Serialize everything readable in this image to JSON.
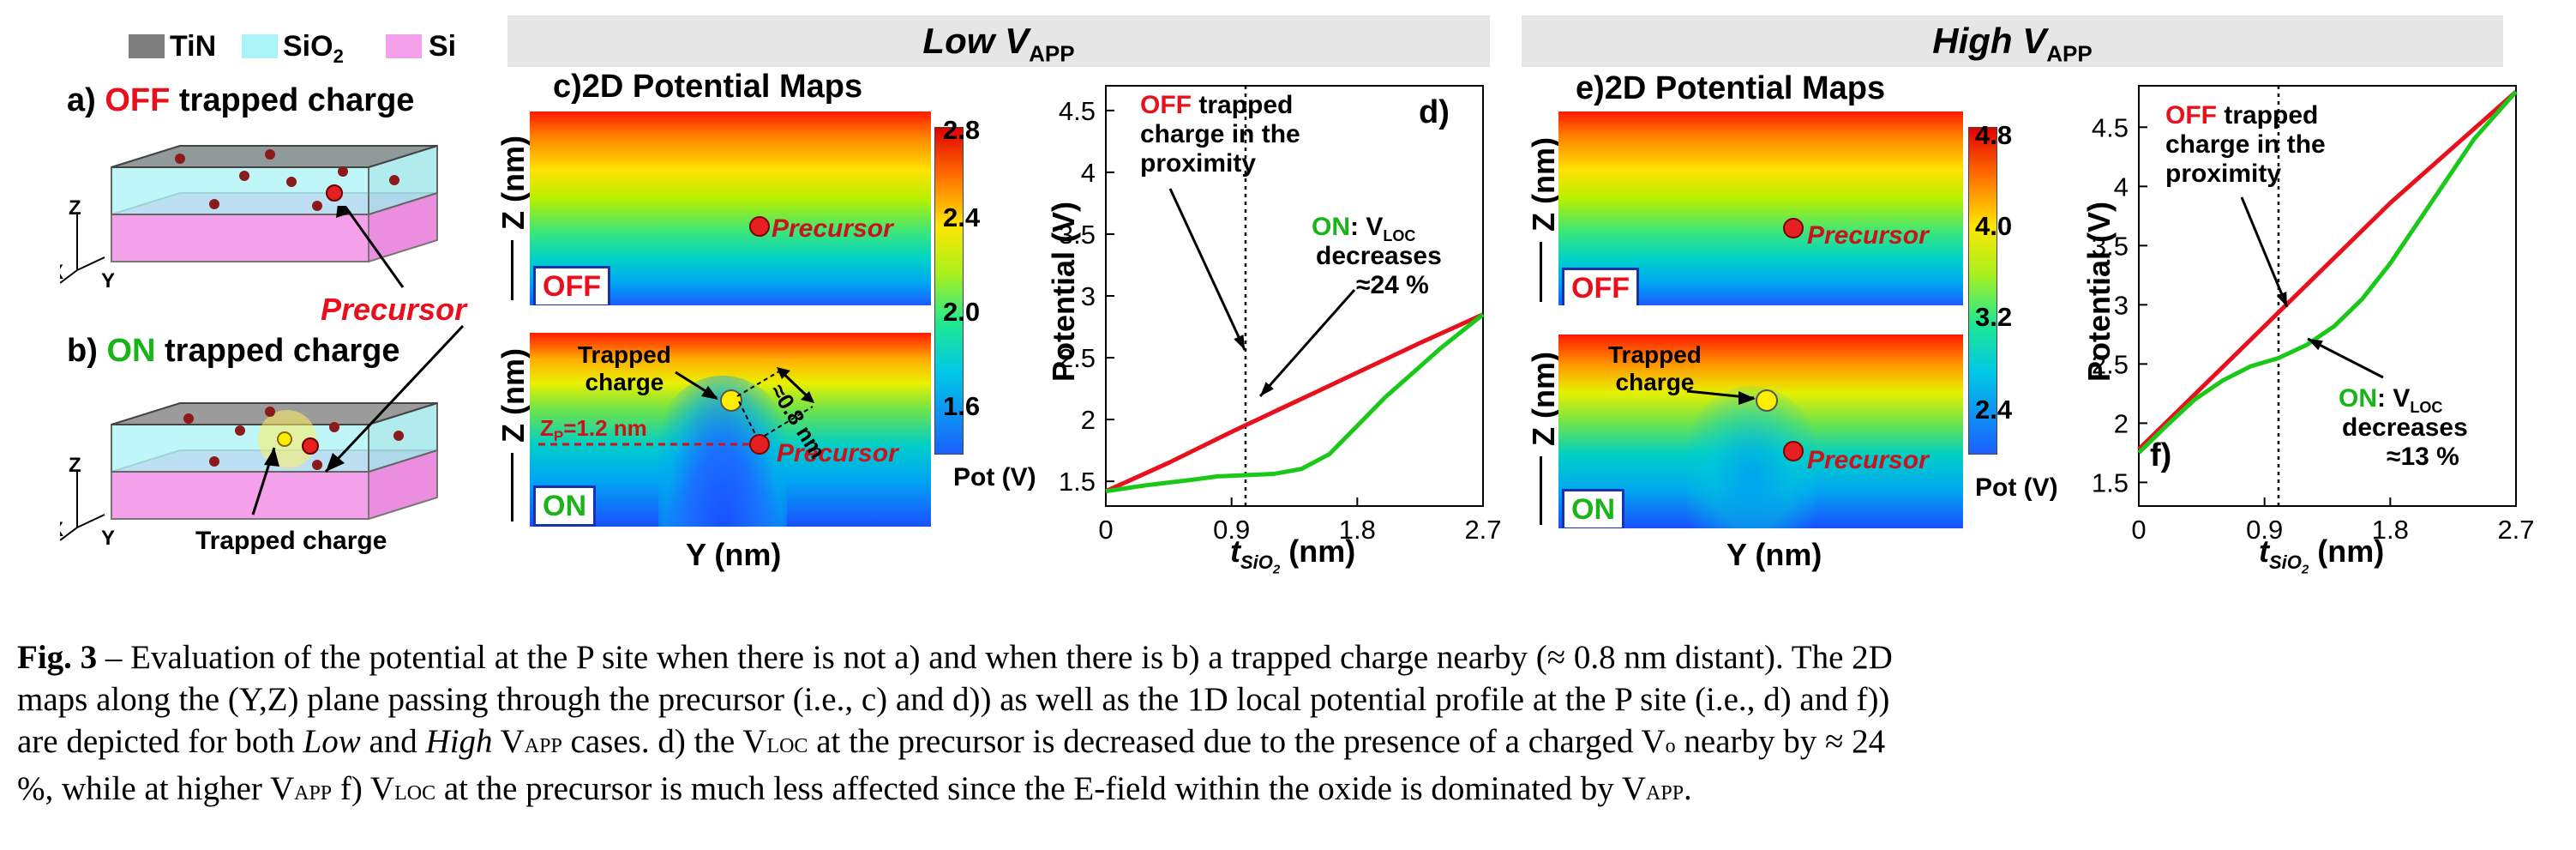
{
  "legend": {
    "tin": "TiN",
    "sio2": "SiO",
    "sio2_sub": "2",
    "si": "Si",
    "tin_color": "#7f7f7f",
    "sio2_color": "#aaf4f7",
    "si_color": "#f5a0ea"
  },
  "panel_a": {
    "letter": "a)",
    "state": "OFF",
    "rest": " trapped charge"
  },
  "panel_b": {
    "letter": "b)",
    "state": "ON",
    "rest": " trapped charge",
    "trapped_label": "Trapped charge"
  },
  "precursor_label": "Precursor",
  "axes_3d": {
    "x": "X",
    "y": "Y",
    "z": "Z"
  },
  "low": {
    "banner": "Low V",
    "banner_sub": "APP",
    "map_title": "c)2D Potential Maps",
    "z_label": "Z (nm)",
    "y_label": "Y (nm)",
    "off_tag": "OFF",
    "on_tag": "ON",
    "precursor": "Precursor",
    "trapped": "Trapped charge",
    "trapped_l1": "Trapped",
    "trapped_l2": "charge",
    "dist": "≈0.8 nm",
    "zp": "Z",
    "zp_sub": "P",
    "zp_val": "=1.2 nm",
    "colorbar": [
      "2.8",
      "2.4",
      "2.0",
      "1.6"
    ],
    "colorbar_label": "Pot (V)"
  },
  "high": {
    "banner": "High V",
    "banner_sub": "APP",
    "map_title": "e)2D Potential Maps",
    "z_label": "Z (nm)",
    "y_label": "Y (nm)",
    "off_tag": "OFF",
    "on_tag": "ON",
    "precursor": "Precursor",
    "trapped_l1": "Trapped",
    "trapped_l2": "charge",
    "colorbar": [
      "4.8",
      "4.0",
      "3.2",
      "2.4"
    ],
    "colorbar_label": "Pot (V)"
  },
  "plot_d": {
    "letter": "d)",
    "off_l1": "OFF",
    "off_l1_rest": " trapped",
    "off_l2": "charge in the",
    "off_l3": "proximity",
    "on_l1": "ON",
    "on_l1_rest": ": V",
    "on_sub": "LOC",
    "on_l2": "decreases",
    "on_l3": "≈24 %",
    "ylabel": "Potential (V)",
    "xlabel_t": "t",
    "xlabel_sub": "SiO",
    "xlabel_sub2": "2",
    "xlabel_rest": " (nm)"
  },
  "plot_f": {
    "letter": "f)",
    "off_l1": "OFF",
    "off_l1_rest": " trapped",
    "off_l2": "charge in the",
    "off_l3": "proximity",
    "on_l1": "ON",
    "on_l1_rest": ": V",
    "on_sub": "LOC",
    "on_l2": "decreases",
    "on_l3": "≈13 %",
    "ylabel": "Potential (V)",
    "xlabel_t": "t",
    "xlabel_sub": "SiO",
    "xlabel_sub2": "2",
    "xlabel_rest": " (nm)"
  },
  "chart_data": [
    {
      "type": "line",
      "title": "d)",
      "xlabel": "t_SiO2 (nm)",
      "ylabel": "Potential (V)",
      "xlim": [
        0,
        2.7
      ],
      "ylim": [
        1.3,
        4.7
      ],
      "xticks": [
        "0",
        "0.9",
        "1.8",
        "2.7"
      ],
      "yticks": [
        "1.5",
        "2",
        "2.5",
        "3",
        "3.5",
        "4",
        "4.5"
      ],
      "ytick_values": [
        1.5,
        2,
        2.5,
        3,
        3.5,
        4,
        4.5
      ],
      "xtick_values": [
        0,
        0.9,
        1.8,
        2.7
      ],
      "marker_x": 1.0,
      "series": [
        {
          "name": "OFF",
          "color": "#e8101c",
          "x": [
            0,
            0.45,
            0.9,
            1.35,
            1.8,
            2.25,
            2.7
          ],
          "y": [
            1.42,
            1.65,
            1.9,
            2.14,
            2.38,
            2.62,
            2.85
          ]
        },
        {
          "name": "ON",
          "color": "#19c819",
          "x": [
            0,
            0.3,
            0.6,
            0.8,
            1.0,
            1.2,
            1.4,
            1.6,
            1.8,
            2.0,
            2.2,
            2.4,
            2.7
          ],
          "y": [
            1.42,
            1.47,
            1.51,
            1.54,
            1.55,
            1.56,
            1.6,
            1.72,
            1.95,
            2.18,
            2.38,
            2.58,
            2.85
          ]
        }
      ]
    },
    {
      "type": "line",
      "title": "f)",
      "xlabel": "t_SiO2 (nm)",
      "ylabel": "Potential (V)",
      "xlim": [
        0,
        2.7
      ],
      "ylim": [
        1.3,
        4.85
      ],
      "xticks": [
        "0",
        "0.9",
        "1.8",
        "2.7"
      ],
      "yticks": [
        "1.5",
        "2",
        "2.5",
        "3",
        "3.5",
        "4",
        "4.5"
      ],
      "ytick_values": [
        1.5,
        2,
        2.5,
        3,
        3.5,
        4,
        4.5
      ],
      "xtick_values": [
        0,
        0.9,
        1.8,
        2.7
      ],
      "marker_x": 1.0,
      "series": [
        {
          "name": "OFF",
          "color": "#e8101c",
          "x": [
            0,
            0.45,
            0.9,
            1.35,
            1.8,
            2.25,
            2.7
          ],
          "y": [
            1.78,
            2.3,
            2.82,
            3.34,
            3.86,
            4.33,
            4.8
          ]
        },
        {
          "name": "ON",
          "color": "#19c819",
          "x": [
            0,
            0.2,
            0.4,
            0.6,
            0.8,
            1.0,
            1.2,
            1.4,
            1.6,
            1.8,
            2.0,
            2.2,
            2.4,
            2.7
          ],
          "y": [
            1.75,
            1.98,
            2.2,
            2.36,
            2.48,
            2.55,
            2.66,
            2.82,
            3.05,
            3.35,
            3.7,
            4.05,
            4.4,
            4.8
          ]
        }
      ]
    }
  ],
  "caption": {
    "lead": "Fig. 3",
    "line1": " –  Evaluation of the potential at the P site when there is not a) and when there is b) a trapped charge nearby (≈ 0.8 nm distant). The 2D",
    "line2": "maps along the (Y,Z) plane passing through the precursor (i.e., c) and d)) as well as the 1D local potential profile at the P site (i.e., d) and f))",
    "line3_a": "are depicted for both ",
    "line3_low": "Low",
    "line3_b": " and ",
    "line3_high": "High",
    "line3_c": " V",
    "line3_sub1": "APP",
    "line3_d": " cases. d) the V",
    "line3_sub2": "LOC",
    "line3_e": " at the precursor is decreased due to the presence of a charged V",
    "line3_sub3": "o",
    "line3_f": " nearby by ≈ 24",
    "line4_a": "%, while at higher V",
    "line4_sub1": "APP",
    "line4_b": " f) V",
    "line4_sub2": "LOC",
    "line4_c": " at the precursor is much less affected since the E-field within the oxide is dominated by V",
    "line4_sub3": "APP",
    "line4_d": "."
  }
}
